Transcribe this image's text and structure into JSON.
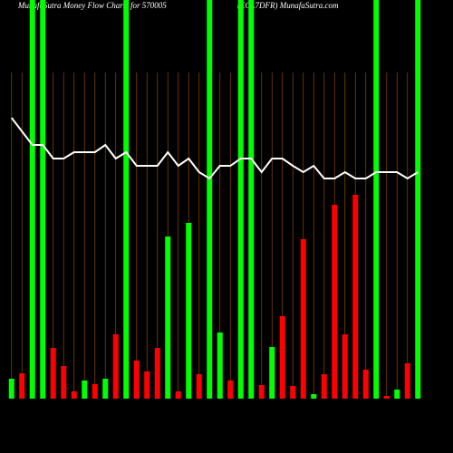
{
  "chart_data": {
    "type": "bar",
    "title": "MunafaSutra  Money Flow  Charts for 570005",
    "subtitle": "(ECL7DFR) MunafaSutra.com",
    "categories": [
      null,
      null,
      null,
      null,
      null,
      null,
      null,
      null,
      null,
      null,
      null,
      null,
      null,
      null,
      null,
      null,
      null,
      null,
      null,
      null,
      null,
      null,
      null,
      null,
      null,
      null,
      null,
      null,
      null,
      null,
      null,
      null,
      null,
      null,
      null,
      null,
      null,
      null,
      null,
      null
    ],
    "ylim": [
      0,
      440
    ],
    "series": [
      {
        "values": [
          22,
          28,
          440,
          440,
          56,
          36,
          8,
          20,
          16,
          22,
          71,
          440,
          42,
          30,
          56,
          179,
          8,
          194,
          27,
          440,
          73,
          20,
          440,
          440,
          15,
          57,
          91,
          14,
          176,
          5,
          27,
          214,
          71,
          225,
          32,
          440,
          3,
          10,
          39,
          440
        ],
        "colors": [
          "#00ff00",
          "#ff0000",
          "#00ff00",
          "#00ff00",
          "#ff0000",
          "#ff0000",
          "#ff0000",
          "#00ff00",
          "#ff0000",
          "#00ff00",
          "#ff0000",
          "#00ff00",
          "#ff0000",
          "#ff0000",
          "#ff0000",
          "#00ff00",
          "#ff0000",
          "#00ff00",
          "#ff0000",
          "#00ff00",
          "#00ff00",
          "#ff0000",
          "#00ff00",
          "#00ff00",
          "#ff0000",
          "#00ff00",
          "#ff0000",
          "#ff0000",
          "#ff0000",
          "#00ff00",
          "#ff0000",
          "#ff0000",
          "#ff0000",
          "#ff0000",
          "#ff0000",
          "#00ff00",
          "#ff0000",
          "#00ff00",
          "#ff0000",
          "#00ff00"
        ]
      },
      {
        "type": "line",
        "color": "#ffffff",
        "axis": "y2",
        "values": [
          310,
          295,
          280,
          280,
          265,
          265,
          272,
          272,
          272,
          280,
          265,
          272,
          257,
          257,
          257,
          272,
          257,
          265,
          250,
          243,
          257,
          257,
          265,
          265,
          250,
          265,
          265,
          257,
          250,
          257,
          243,
          243,
          250,
          243,
          243,
          250,
          250,
          250,
          243,
          250
        ]
      }
    ],
    "y2lim": [
      0,
      440
    ],
    "guide_color": "#8b4a00"
  }
}
